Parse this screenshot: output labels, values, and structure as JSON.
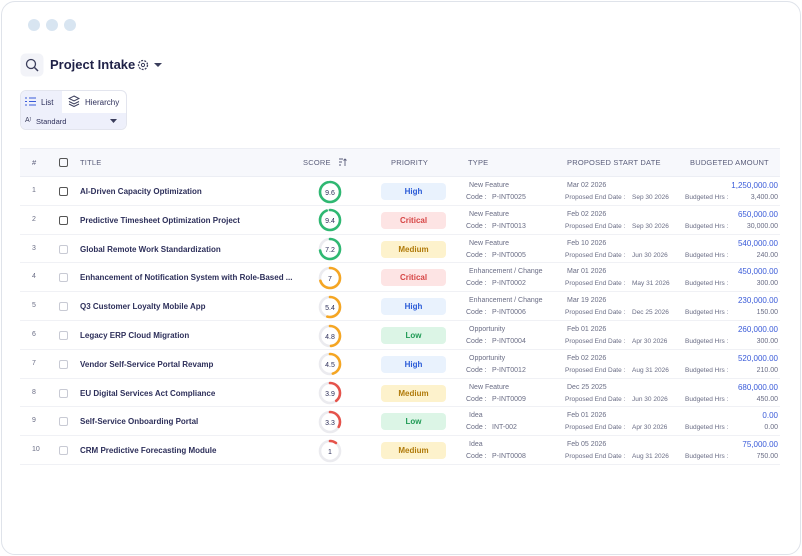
{
  "header": {
    "title": "Project Intake"
  },
  "views": {
    "list": "List",
    "hierarchy": "Hierarchy",
    "layout": "Standard"
  },
  "table": {
    "columns": {
      "no": "#",
      "title": "TITLE",
      "score": "SCORE",
      "priority": "PRIORITY",
      "type": "TYPE",
      "start": "PROPOSED START DATE",
      "amount": "BUDGETED AMOUNT"
    },
    "labels": {
      "code": "Code :",
      "end": "Proposed End Date :",
      "hrs": "Budgeted Hrs :"
    },
    "score_range": [
      0,
      10
    ],
    "rows": [
      {
        "no": "1",
        "title": "AI-Driven Capacity Optimization",
        "score": 9.6,
        "score_color": "#2fb872",
        "priority": "High",
        "type": "New Feature",
        "code": "P-INT0025",
        "start": "Mar 02 2026",
        "end": "Sep 30 2026",
        "amount": "1,250,000.00",
        "hrs": "3,400.00"
      },
      {
        "no": "2",
        "title": "Predictive Timesheet Optimization Project",
        "score": 9.4,
        "score_color": "#2fb872",
        "priority": "Critical",
        "type": "New Feature",
        "code": "P-INT0013",
        "start": "Feb 02 2026",
        "end": "Sep 30 2026",
        "amount": "650,000.00",
        "hrs": "30,000.00"
      },
      {
        "no": "3",
        "title": "Global Remote Work Standardization",
        "score": 7.2,
        "score_color": "#2fb872",
        "priority": "Medium",
        "type": "New Feature",
        "code": "P-INT0005",
        "start": "Feb 10 2026",
        "end": "Jun 30 2026",
        "amount": "540,000.00",
        "hrs": "240.00"
      },
      {
        "no": "4",
        "title": "Enhancement of Notification System with Role-Based ...",
        "score": 7,
        "score_color": "#f5a623",
        "priority": "Critical",
        "type": "Enhancement / Change",
        "code": "P-INT0002",
        "start": "Mar 01 2026",
        "end": "May 31 2026",
        "amount": "450,000.00",
        "hrs": "300.00"
      },
      {
        "no": "5",
        "title": "Q3 Customer Loyalty Mobile App",
        "score": 5.4,
        "score_color": "#f5a623",
        "priority": "High",
        "type": "Enhancement / Change",
        "code": "P-INT0006",
        "start": "Mar 19 2026",
        "end": "Dec 25 2026",
        "amount": "230,000.00",
        "hrs": "150.00"
      },
      {
        "no": "6",
        "title": "Legacy ERP Cloud Migration",
        "score": 4.8,
        "score_color": "#f5a623",
        "priority": "Low",
        "type": "Opportunity",
        "code": "P-INT0004",
        "start": "Feb 01 2026",
        "end": "Apr 30 2026",
        "amount": "260,000.00",
        "hrs": "300.00"
      },
      {
        "no": "7",
        "title": "Vendor Self-Service Portal Revamp",
        "score": 4.5,
        "score_color": "#f5a623",
        "priority": "High",
        "type": "Opportunity",
        "code": "P-INT0012",
        "start": "Feb 02 2026",
        "end": "Aug 31 2026",
        "amount": "520,000.00",
        "hrs": "210.00"
      },
      {
        "no": "8",
        "title": "EU Digital Services Act Compliance",
        "score": 3.9,
        "score_color": "#e5534b",
        "priority": "Medium",
        "type": "New Feature",
        "code": "P-INT0009",
        "start": "Dec 25 2025",
        "end": "Jun 30 2026",
        "amount": "680,000.00",
        "hrs": "450.00"
      },
      {
        "no": "9",
        "title": "Self-Service Onboarding Portal",
        "score": 3.3,
        "score_color": "#e5534b",
        "priority": "Low",
        "type": "Idea",
        "code": "INT-002",
        "start": "Feb 01 2026",
        "end": "Apr 30 2026",
        "amount": "0.00",
        "hrs": "0.00"
      },
      {
        "no": "10",
        "title": "CRM Predictive Forecasting Module",
        "score": 1,
        "score_color": "#e5534b",
        "priority": "Medium",
        "type": "Idea",
        "code": "P-INT0008",
        "start": "Feb 05 2026",
        "end": "Aug 31 2026",
        "amount": "75,000.00",
        "hrs": "750.00"
      }
    ]
  }
}
